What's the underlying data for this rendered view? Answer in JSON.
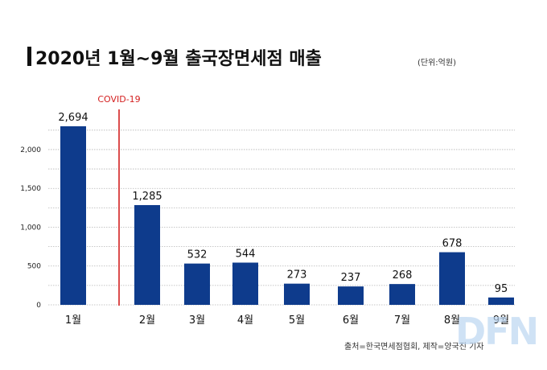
{
  "title": "2020년 1월~9월 출국장면세점 매출",
  "unit": "(단위:억원)",
  "source": "출처=한국면세점협회, 제작=양국진 기자",
  "logo": "DFN",
  "colors": {
    "bar": "#0e3b8c",
    "covid_line": "#d42020",
    "grid": "#b5b5b5"
  },
  "chart_data": {
    "type": "bar",
    "title": "2020년 1월~9월 출국장면세점 매출",
    "xlabel": "",
    "ylabel": "",
    "categories": [
      "1월",
      "2월",
      "3월",
      "4월",
      "5월",
      "6월",
      "7월",
      "8월",
      "9월"
    ],
    "values": [
      2694,
      1285,
      532,
      544,
      273,
      237,
      268,
      678,
      95
    ],
    "data_labels": [
      "2,694",
      "1,285",
      "532",
      "544",
      "273",
      "237",
      "268",
      "678",
      "95"
    ],
    "ylim": [
      0,
      2300
    ],
    "yticks": [
      0,
      500,
      1000,
      1500,
      2000
    ],
    "ytick_labels": [
      "0",
      "500",
      "1,000",
      "1,500",
      "2,000"
    ],
    "grid": true,
    "annotations": [
      {
        "text": "COVID-19",
        "between": [
          "1월",
          "2월"
        ]
      }
    ]
  }
}
